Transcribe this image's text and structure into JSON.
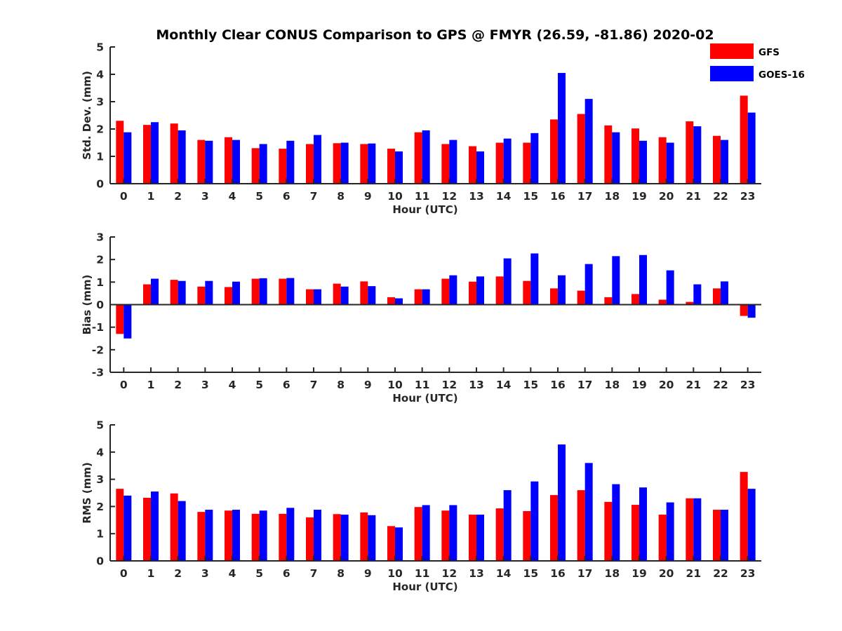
{
  "chart_data": {
    "title": "Monthly Clear CONUS Comparison to GPS @ FMYR (26.59, -81.86) 2020-02",
    "legend": {
      "position": "top-right",
      "entries": [
        {
          "name": "GFS",
          "color": "#ff0000"
        },
        {
          "name": "GOES-16",
          "color": "#0000ff"
        }
      ]
    },
    "panels": [
      {
        "type": "bar",
        "ylabel": "Std. Dev. (mm)",
        "xlabel": "Hour (UTC)",
        "ylim": [
          0,
          5
        ],
        "yticks": [
          0,
          1,
          2,
          3,
          4,
          5
        ],
        "categories": [
          "0",
          "1",
          "2",
          "3",
          "4",
          "5",
          "6",
          "7",
          "8",
          "9",
          "10",
          "11",
          "12",
          "13",
          "14",
          "15",
          "16",
          "17",
          "18",
          "19",
          "20",
          "21",
          "22",
          "23"
        ],
        "series": [
          {
            "name": "GFS",
            "color": "#ff0000",
            "values": [
              2.3,
              2.15,
              2.2,
              1.6,
              1.7,
              1.3,
              1.28,
              1.45,
              1.48,
              1.45,
              1.28,
              1.88,
              1.45,
              1.37,
              1.5,
              1.5,
              2.35,
              2.55,
              2.13,
              2.02,
              1.7,
              2.28,
              1.75,
              3.22
            ]
          },
          {
            "name": "GOES-16",
            "color": "#0000ff",
            "values": [
              1.88,
              2.25,
              1.95,
              1.57,
              1.6,
              1.45,
              1.57,
              1.78,
              1.5,
              1.47,
              1.18,
              1.95,
              1.6,
              1.18,
              1.65,
              1.85,
              4.05,
              3.1,
              1.88,
              1.57,
              1.5,
              2.1,
              1.6,
              2.6
            ]
          }
        ]
      },
      {
        "type": "bar",
        "ylabel": "Bias (mm)",
        "xlabel": "Hour (UTC)",
        "ylim": [
          -3,
          3
        ],
        "yticks": [
          -3,
          -2,
          -1,
          0,
          1,
          2,
          3
        ],
        "categories": [
          "0",
          "1",
          "2",
          "3",
          "4",
          "5",
          "6",
          "7",
          "8",
          "9",
          "10",
          "11",
          "12",
          "13",
          "14",
          "15",
          "16",
          "17",
          "18",
          "19",
          "20",
          "21",
          "22",
          "23"
        ],
        "series": [
          {
            "name": "GFS",
            "color": "#ff0000",
            "values": [
              -1.3,
              0.9,
              1.1,
              0.8,
              0.78,
              1.15,
              1.15,
              0.68,
              0.93,
              1.03,
              0.33,
              0.68,
              1.15,
              1.02,
              1.25,
              1.05,
              0.72,
              0.62,
              0.33,
              0.47,
              0.22,
              0.12,
              0.72,
              -0.5
            ]
          },
          {
            "name": "GOES-16",
            "color": "#0000ff",
            "values": [
              -1.5,
              1.15,
              1.05,
              1.05,
              1.02,
              1.17,
              1.18,
              0.68,
              0.8,
              0.82,
              0.28,
              0.68,
              1.3,
              1.25,
              2.05,
              2.27,
              1.3,
              1.8,
              2.15,
              2.2,
              1.52,
              0.9,
              1.03,
              -0.58
            ]
          }
        ]
      },
      {
        "type": "bar",
        "ylabel": "RMS (mm)",
        "xlabel": "Hour (UTC)",
        "ylim": [
          0,
          5
        ],
        "yticks": [
          0,
          1,
          2,
          3,
          4,
          5
        ],
        "categories": [
          "0",
          "1",
          "2",
          "3",
          "4",
          "5",
          "6",
          "7",
          "8",
          "9",
          "10",
          "11",
          "12",
          "13",
          "14",
          "15",
          "16",
          "17",
          "18",
          "19",
          "20",
          "21",
          "22",
          "23"
        ],
        "series": [
          {
            "name": "GFS",
            "color": "#ff0000",
            "values": [
              2.65,
              2.32,
              2.48,
              1.8,
              1.85,
              1.73,
              1.73,
              1.6,
              1.72,
              1.78,
              1.28,
              1.98,
              1.85,
              1.7,
              1.93,
              1.83,
              2.42,
              2.6,
              2.17,
              2.06,
              1.7,
              2.3,
              1.88,
              3.27
            ]
          },
          {
            "name": "GOES-16",
            "color": "#0000ff",
            "values": [
              2.4,
              2.55,
              2.2,
              1.88,
              1.88,
              1.85,
              1.95,
              1.88,
              1.7,
              1.68,
              1.23,
              2.05,
              2.05,
              1.7,
              2.6,
              2.92,
              4.28,
              3.6,
              2.82,
              2.7,
              2.15,
              2.3,
              1.88,
              2.65
            ]
          }
        ]
      }
    ]
  }
}
